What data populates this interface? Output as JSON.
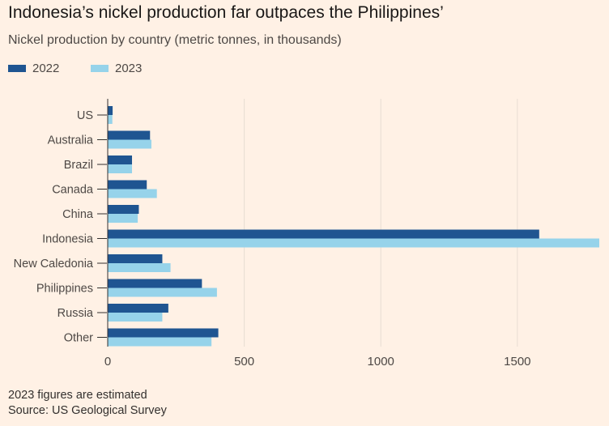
{
  "title": "Indonesia’s nickel production far outpaces the Philippines’",
  "subtitle": "Nickel production by country (metric tonnes, in thousands)",
  "footnotes": {
    "note": "2023 figures are estimated",
    "source": "Source: US Geological Survey"
  },
  "colors": {
    "series_2022": "#1f5591",
    "series_2023": "#96d3ea",
    "gridline": "#e8ddd3",
    "axis": "#33302e",
    "background": "#fff1e5"
  },
  "chart_data": {
    "type": "bar",
    "orientation": "horizontal",
    "title": "Indonesia’s nickel production far outpaces the Philippines’",
    "xlabel": "",
    "ylabel": "",
    "categories": [
      "US",
      "Australia",
      "Brazil",
      "Canada",
      "China",
      "Indonesia",
      "New Caledonia",
      "Philippines",
      "Russia",
      "Other"
    ],
    "series": [
      {
        "name": "2022",
        "values": [
          18,
          155,
          89,
          143,
          114,
          1580,
          200,
          345,
          222,
          405
        ]
      },
      {
        "name": "2023",
        "values": [
          17,
          160,
          89,
          180,
          110,
          1800,
          230,
          400,
          200,
          380
        ]
      }
    ],
    "xlim": [
      0,
      1800
    ],
    "xticks": [
      0,
      500,
      1000,
      1500
    ],
    "xtick_labels": [
      "0",
      "500",
      "1000",
      "1500"
    ],
    "grid": true,
    "legend_position": "top-left"
  }
}
